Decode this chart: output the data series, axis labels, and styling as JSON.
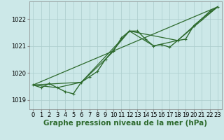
{
  "background_color": "#cce8e8",
  "grid_color": "#aacccc",
  "line_color": "#2d6a2d",
  "marker_color": "#2d6a2d",
  "xlabel": "Graphe pression niveau de la mer (hPa)",
  "xlabel_fontsize": 7.5,
  "tick_fontsize": 6,
  "xlim": [
    -0.5,
    23.5
  ],
  "ylim": [
    1018.65,
    1022.65
  ],
  "yticks": [
    1019,
    1020,
    1021,
    1022
  ],
  "xticks": [
    0,
    1,
    2,
    3,
    4,
    5,
    6,
    7,
    8,
    9,
    10,
    11,
    12,
    13,
    14,
    15,
    16,
    17,
    18,
    19,
    20,
    21,
    22,
    23
  ],
  "series": [
    {
      "x": [
        0,
        1,
        2,
        3,
        4,
        5,
        6,
        7,
        8,
        9,
        10,
        11,
        12,
        13,
        14,
        15,
        16,
        17,
        18,
        19,
        20,
        21,
        22,
        23
      ],
      "y": [
        1019.55,
        1019.45,
        1019.6,
        1019.45,
        1019.3,
        1019.22,
        1019.65,
        1019.85,
        1020.05,
        1020.5,
        1020.8,
        1021.3,
        1021.55,
        1021.55,
        1021.25,
        1021.0,
        1021.05,
        1020.95,
        1021.2,
        1021.25,
        1021.75,
        1022.0,
        1022.28,
        1022.45
      ],
      "has_marker": true,
      "linewidth": 1.0,
      "markersize": 2.2
    },
    {
      "x": [
        0,
        23
      ],
      "y": [
        1019.55,
        1022.45
      ],
      "has_marker": false,
      "linewidth": 0.9
    },
    {
      "x": [
        0,
        6,
        12,
        18,
        23
      ],
      "y": [
        1019.55,
        1019.65,
        1021.55,
        1021.2,
        1022.45
      ],
      "has_marker": false,
      "linewidth": 0.9
    },
    {
      "x": [
        0,
        3,
        6,
        9,
        12,
        15,
        18,
        21,
        23
      ],
      "y": [
        1019.55,
        1019.45,
        1019.65,
        1020.5,
        1021.55,
        1021.0,
        1021.2,
        1022.0,
        1022.45
      ],
      "has_marker": false,
      "linewidth": 0.9
    }
  ]
}
